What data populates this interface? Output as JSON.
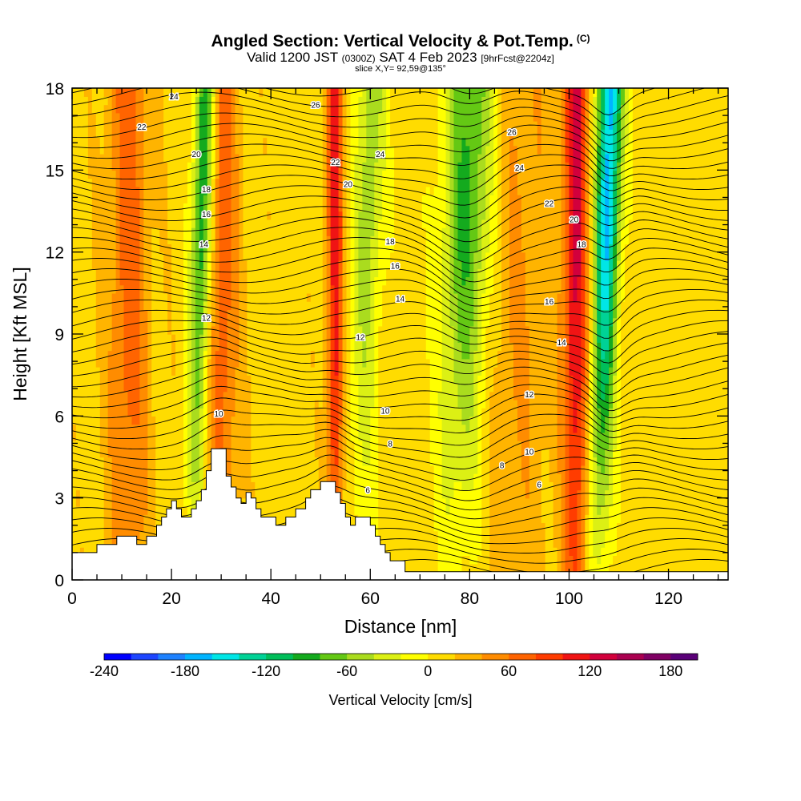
{
  "header": {
    "title": "Angled Section: Vertical Velocity & Pot.Temp.",
    "title_unit": "(C)",
    "valid_a": "Valid 1200 JST",
    "valid_b": "(0300Z)",
    "valid_c": "SAT 4 Feb 2023",
    "valid_d": "[9hrFcst@2204z]",
    "slice": "slice X,Y= 92,59@135°"
  },
  "chart_data": {
    "type": "heatmap",
    "xlabel": "Distance [nm]",
    "ylabel": "Height [Kft MSL]",
    "xlim": [
      0,
      132
    ],
    "ylim": [
      0,
      18
    ],
    "x_ticks": [
      "0",
      "20",
      "40",
      "60",
      "80",
      "100",
      "120"
    ],
    "y_ticks": [
      "0",
      "3",
      "6",
      "9",
      "12",
      "15",
      "18"
    ],
    "grid": false,
    "colorbar": {
      "label": "Vertical Velocity [cm/s]",
      "range": [
        -240,
        200
      ],
      "tick_labels": [
        "-240",
        "-180",
        "-120",
        "-60",
        "0",
        "60",
        "120",
        "180"
      ],
      "colors": [
        "#0000ff",
        "#1e46ff",
        "#1e82ff",
        "#00b4ff",
        "#00e6e6",
        "#00d296",
        "#00be5a",
        "#14aa1e",
        "#64c814",
        "#aadc1e",
        "#dcf014",
        "#ffff00",
        "#ffdc00",
        "#ffb400",
        "#ff8c00",
        "#ff6400",
        "#ff3c00",
        "#f01414",
        "#d2003c",
        "#aa0050",
        "#800064",
        "#5a0078"
      ]
    },
    "updrafts": [
      {
        "x": 11,
        "w": 4,
        "amp": 60
      },
      {
        "x": 30,
        "w": 3,
        "amp": 60
      },
      {
        "x": 52.5,
        "w": 1.6,
        "amp": 100
      },
      {
        "x": 101,
        "w": 2.5,
        "amp": 110
      },
      {
        "x": 89,
        "w": 8,
        "amp": 30
      }
    ],
    "downdrafts": [
      {
        "x": 26.5,
        "w": 2,
        "amp": -90
      },
      {
        "x": 60,
        "w": 3,
        "amp": -50
      },
      {
        "x": 80,
        "w": 5,
        "amp": -80
      },
      {
        "x": 108,
        "w": 2.5,
        "amp": -140
      }
    ],
    "terrain": [
      [
        0,
        1
      ],
      [
        5,
        1
      ],
      [
        5,
        1.3
      ],
      [
        9,
        1.3
      ],
      [
        9,
        1.6
      ],
      [
        13,
        1.6
      ],
      [
        13,
        1.3
      ],
      [
        15,
        1.3
      ],
      [
        15,
        1.6
      ],
      [
        17,
        1.6
      ],
      [
        17,
        2
      ],
      [
        18,
        2
      ],
      [
        18,
        2.3
      ],
      [
        19,
        2.3
      ],
      [
        19,
        2.6
      ],
      [
        20,
        2.6
      ],
      [
        20,
        2.9
      ],
      [
        21,
        2.9
      ],
      [
        21,
        2.6
      ],
      [
        22,
        2.6
      ],
      [
        22,
        2.3
      ],
      [
        24,
        2.3
      ],
      [
        24,
        2.6
      ],
      [
        25,
        2.6
      ],
      [
        25,
        2.9
      ],
      [
        26,
        2.9
      ],
      [
        26,
        3.3
      ],
      [
        27,
        3.3
      ],
      [
        27,
        4
      ],
      [
        28,
        4
      ],
      [
        28,
        4.8
      ],
      [
        31,
        4.8
      ],
      [
        31,
        3.8
      ],
      [
        32,
        3.8
      ],
      [
        32,
        3.4
      ],
      [
        33,
        3.4
      ],
      [
        33,
        3
      ],
      [
        34,
        3
      ],
      [
        34,
        2.8
      ],
      [
        35,
        2.8
      ],
      [
        35,
        3.2
      ],
      [
        36,
        3.2
      ],
      [
        36,
        3
      ],
      [
        37,
        3
      ],
      [
        37,
        2.6
      ],
      [
        38,
        2.6
      ],
      [
        38,
        2.3
      ],
      [
        41,
        2.3
      ],
      [
        41,
        2
      ],
      [
        43,
        2
      ],
      [
        43,
        2.3
      ],
      [
        45,
        2.3
      ],
      [
        45,
        2.6
      ],
      [
        47,
        2.6
      ],
      [
        47,
        3
      ],
      [
        48,
        3
      ],
      [
        48,
        3.3
      ],
      [
        50,
        3.3
      ],
      [
        50,
        3.6
      ],
      [
        53,
        3.6
      ],
      [
        53,
        3.2
      ],
      [
        54,
        3.2
      ],
      [
        54,
        2.8
      ],
      [
        55,
        2.8
      ],
      [
        55,
        2.3
      ],
      [
        56,
        2.3
      ],
      [
        56,
        2
      ],
      [
        57,
        2
      ],
      [
        57,
        2.3
      ],
      [
        60,
        2.3
      ],
      [
        60,
        2
      ],
      [
        61,
        2
      ],
      [
        61,
        1.6
      ],
      [
        62,
        1.6
      ],
      [
        62,
        1.3
      ],
      [
        63,
        1.3
      ],
      [
        63,
        1
      ],
      [
        64,
        1
      ],
      [
        64,
        0.7
      ],
      [
        67,
        0.7
      ],
      [
        67,
        0.3
      ],
      [
        132,
        0.3
      ]
    ],
    "isentrope_labels": [
      {
        "text": "24",
        "x": 20.5,
        "y": 17.7
      },
      {
        "text": "22",
        "x": 14,
        "y": 16.6
      },
      {
        "text": "20",
        "x": 25,
        "y": 15.6
      },
      {
        "text": "18",
        "x": 27,
        "y": 14.3
      },
      {
        "text": "16",
        "x": 27,
        "y": 13.4
      },
      {
        "text": "14",
        "x": 26.5,
        "y": 12.3
      },
      {
        "text": "12",
        "x": 27,
        "y": 9.6
      },
      {
        "text": "10",
        "x": 29.5,
        "y": 6.1
      },
      {
        "text": "26",
        "x": 49,
        "y": 17.4
      },
      {
        "text": "22",
        "x": 53,
        "y": 15.3
      },
      {
        "text": "20",
        "x": 55.5,
        "y": 14.5
      },
      {
        "text": "24",
        "x": 62,
        "y": 15.6
      },
      {
        "text": "18",
        "x": 64,
        "y": 12.4
      },
      {
        "text": "16",
        "x": 65,
        "y": 11.5
      },
      {
        "text": "14",
        "x": 66,
        "y": 10.3
      },
      {
        "text": "12",
        "x": 58,
        "y": 8.9
      },
      {
        "text": "10",
        "x": 63,
        "y": 6.2
      },
      {
        "text": "8",
        "x": 64,
        "y": 5
      },
      {
        "text": "6",
        "x": 59.5,
        "y": 3.3
      },
      {
        "text": "26",
        "x": 88.5,
        "y": 16.4
      },
      {
        "text": "24",
        "x": 90,
        "y": 15.1
      },
      {
        "text": "22",
        "x": 96,
        "y": 13.8
      },
      {
        "text": "20",
        "x": 101,
        "y": 13.2
      },
      {
        "text": "18",
        "x": 102.5,
        "y": 12.3
      },
      {
        "text": "16",
        "x": 96,
        "y": 10.2
      },
      {
        "text": "14",
        "x": 98.5,
        "y": 8.7
      },
      {
        "text": "12",
        "x": 92,
        "y": 6.8
      },
      {
        "text": "10",
        "x": 92,
        "y": 4.7
      },
      {
        "text": "8",
        "x": 86.5,
        "y": 4.2
      },
      {
        "text": "6",
        "x": 94,
        "y": 3.5
      }
    ]
  }
}
